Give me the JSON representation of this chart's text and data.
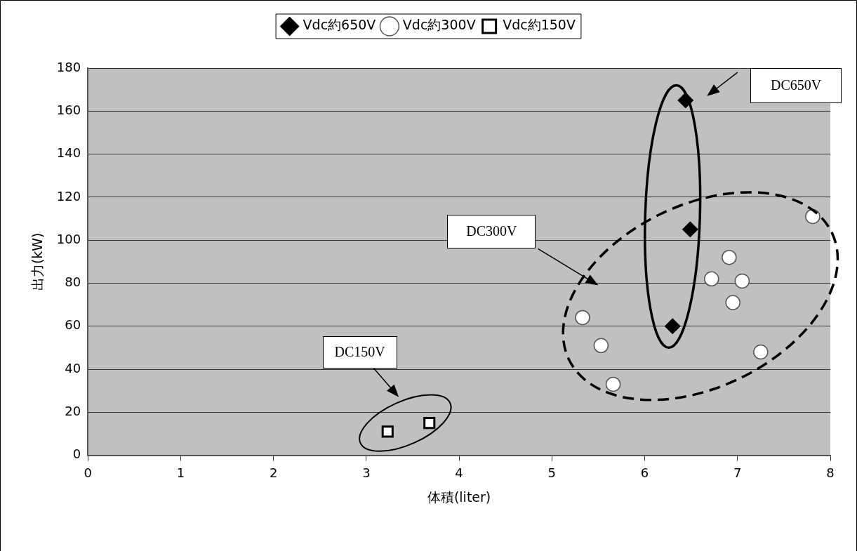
{
  "chart_data": {
    "type": "scatter",
    "xlabel": "体積(liter)",
    "ylabel": "出力(kW)",
    "xlim": [
      0,
      8
    ],
    "xticks": [
      0,
      1,
      2,
      3,
      4,
      5,
      6,
      7,
      8
    ],
    "ylim": [
      0,
      180
    ],
    "yticks": [
      0,
      20,
      40,
      60,
      80,
      100,
      120,
      140,
      160,
      180
    ],
    "grid": "y",
    "legend": "top",
    "series": [
      {
        "name": "Vdc約650V",
        "color": "#000000",
        "marker": "diamond",
        "x": [
          6.44,
          6.49,
          6.3
        ],
        "values": [
          165,
          105,
          60
        ]
      },
      {
        "name": "Vdc約300V",
        "color": "#ffffff",
        "marker": "circle",
        "x": [
          7.81,
          6.91,
          6.72,
          7.05,
          6.95,
          5.33,
          5.53,
          5.66,
          7.25
        ],
        "values": [
          111,
          92,
          82,
          81,
          71,
          64,
          51,
          33,
          48
        ]
      },
      {
        "name": "Vdc約150V",
        "color": "#ffffff",
        "marker": "square",
        "x": [
          3.23,
          3.68
        ],
        "values": [
          11,
          15
        ]
      }
    ],
    "annotations": [
      "DC650V",
      "DC300V",
      "DC150V"
    ]
  }
}
